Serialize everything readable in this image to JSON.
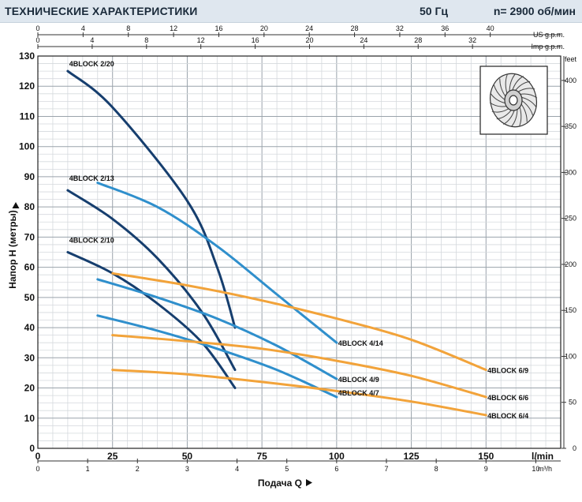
{
  "header": {
    "title": "ТЕХНИЧЕСКИЕ ХАРАКТЕРИСТИКИ",
    "frequency": "50 Гц",
    "speed": "n= 2900 об/мин"
  },
  "chart_data": {
    "type": "line",
    "title": "",
    "xlabel": "Подача Q",
    "ylabel": "Напор H (метры)",
    "xlim": [
      0,
      175
    ],
    "ylim": [
      0,
      130
    ],
    "x_unit": "l/min",
    "x_ticks": [
      0,
      25,
      50,
      75,
      100,
      125,
      150
    ],
    "y_ticks": [
      0,
      10,
      20,
      30,
      40,
      50,
      60,
      70,
      80,
      90,
      100,
      110,
      120,
      130
    ],
    "secondary_axes": {
      "us_gpm": {
        "label": "US g.p.m.",
        "ticks": [
          0,
          4,
          8,
          12,
          16,
          20,
          24,
          28,
          32,
          36,
          40
        ]
      },
      "imp_gpm": {
        "label": "Imp g.p.m.",
        "ticks": [
          0,
          4,
          8,
          12,
          16,
          20,
          24,
          28,
          32
        ]
      },
      "m3h": {
        "label": "m³/h",
        "ticks": [
          0,
          1,
          2,
          3,
          4,
          5,
          6,
          7,
          8,
          9,
          10
        ]
      },
      "feet": {
        "label": "feet",
        "ticks": [
          0,
          50,
          100,
          150,
          200,
          250,
          300,
          350,
          400
        ]
      }
    },
    "grid": true,
    "colors": {
      "dark": "#163e6e",
      "mid": "#2f8fcc",
      "orange": "#f2a33a"
    },
    "series": [
      {
        "name": "4BLOCK 2/20",
        "color": "dark",
        "points": [
          [
            10,
            125
          ],
          [
            25,
            113
          ],
          [
            50,
            82
          ],
          [
            60,
            60
          ],
          [
            66,
            40
          ]
        ]
      },
      {
        "name": "4BLOCK 2/13",
        "color": "dark",
        "points": [
          [
            10,
            85.5
          ],
          [
            25,
            76
          ],
          [
            40,
            63
          ],
          [
            55,
            45
          ],
          [
            66,
            26
          ]
        ]
      },
      {
        "name": "4BLOCK 2/10",
        "color": "dark",
        "points": [
          [
            10,
            65
          ],
          [
            25,
            58
          ],
          [
            40,
            48
          ],
          [
            55,
            35
          ],
          [
            66,
            20
          ]
        ]
      },
      {
        "name": "4BLOCK 4/14",
        "color": "mid",
        "points": [
          [
            20,
            88
          ],
          [
            40,
            80
          ],
          [
            60,
            67
          ],
          [
            80,
            51
          ],
          [
            100,
            35
          ]
        ]
      },
      {
        "name": "4BLOCK 4/9",
        "color": "mid",
        "points": [
          [
            20,
            56
          ],
          [
            40,
            50
          ],
          [
            60,
            43
          ],
          [
            80,
            34
          ],
          [
            100,
            23
          ]
        ]
      },
      {
        "name": "4BLOCK 4/7",
        "color": "mid",
        "points": [
          [
            20,
            44
          ],
          [
            40,
            39
          ],
          [
            60,
            33
          ],
          [
            80,
            26
          ],
          [
            100,
            17
          ]
        ]
      },
      {
        "name": "4BLOCK 6/9",
        "color": "orange",
        "points": [
          [
            25,
            58
          ],
          [
            50,
            54
          ],
          [
            75,
            49
          ],
          [
            100,
            43
          ],
          [
            125,
            36
          ],
          [
            150,
            26
          ]
        ]
      },
      {
        "name": "4BLOCK 6/6",
        "color": "orange",
        "points": [
          [
            25,
            37.5
          ],
          [
            50,
            35.5
          ],
          [
            75,
            33
          ],
          [
            100,
            29
          ],
          [
            125,
            24
          ],
          [
            150,
            17
          ]
        ]
      },
      {
        "name": "4BLOCK 6/4",
        "color": "orange",
        "points": [
          [
            25,
            26
          ],
          [
            50,
            24.5
          ],
          [
            75,
            22
          ],
          [
            100,
            19
          ],
          [
            125,
            15.5
          ],
          [
            150,
            11
          ]
        ]
      }
    ]
  }
}
